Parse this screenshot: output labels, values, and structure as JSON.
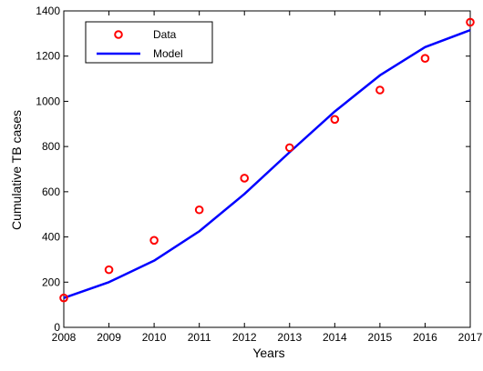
{
  "chart_data": {
    "type": "line",
    "title": "",
    "xlabel": "Years",
    "ylabel": "Cumulative TB cases",
    "xlim": [
      2008,
      2017
    ],
    "ylim": [
      0,
      1400
    ],
    "x_ticks": [
      "2008",
      "2009",
      "2010",
      "2011",
      "2012",
      "2013",
      "2014",
      "2015",
      "2016",
      "2017"
    ],
    "y_ticks": [
      "0",
      "200",
      "400",
      "600",
      "800",
      "1000",
      "1200",
      "1400"
    ],
    "grid": false,
    "legend_position": "top-left",
    "series": [
      {
        "name": "Data",
        "style": "markers",
        "marker": "circle",
        "color": "#ff0000",
        "x": [
          2008,
          2009,
          2010,
          2011,
          2012,
          2013,
          2014,
          2015,
          2016,
          2017
        ],
        "y": [
          130,
          255,
          385,
          520,
          660,
          795,
          920,
          1050,
          1190,
          1350
        ]
      },
      {
        "name": "Model",
        "style": "line",
        "color": "#0000ff",
        "x": [
          2008,
          2009,
          2010,
          2011,
          2012,
          2013,
          2014,
          2015,
          2016,
          2017
        ],
        "y": [
          130,
          200,
          295,
          425,
          590,
          775,
          955,
          1115,
          1240,
          1315
        ]
      }
    ]
  }
}
